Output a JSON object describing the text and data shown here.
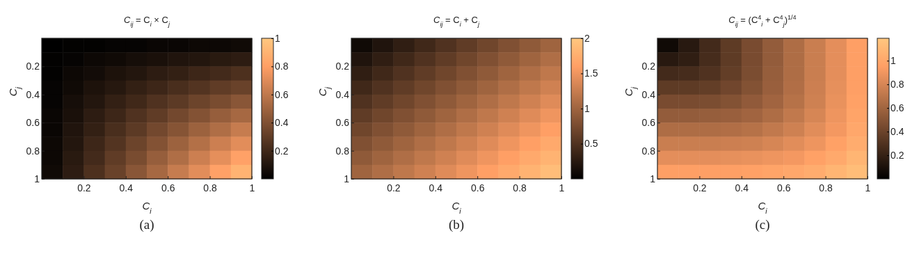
{
  "chart_data": [
    {
      "type": "heatmap",
      "title": "C$_{ij}$ = C$_{i}$ × C$_{j}$",
      "xlabel": "C$_{i}$",
      "ylabel": "C$_{j}$",
      "xlim": [
        0,
        1
      ],
      "xticks": [
        0.2,
        0.4,
        0.6,
        0.8,
        1
      ],
      "ylim": [
        1,
        0
      ],
      "yticks": [
        0.2,
        0.4,
        0.6,
        0.8,
        1
      ],
      "clim": [
        0,
        1
      ],
      "cticks": [
        0.2,
        0.4,
        0.6,
        0.8,
        1
      ],
      "cells": [
        [
          0.0,
          0.01,
          0.01,
          0.02,
          0.02,
          0.03,
          0.03,
          0.04,
          0.04,
          0.05
        ],
        [
          0.01,
          0.02,
          0.04,
          0.05,
          0.07,
          0.08,
          0.1,
          0.11,
          0.13,
          0.14
        ],
        [
          0.01,
          0.04,
          0.06,
          0.09,
          0.11,
          0.14,
          0.16,
          0.19,
          0.21,
          0.24
        ],
        [
          0.02,
          0.05,
          0.09,
          0.12,
          0.16,
          0.19,
          0.23,
          0.26,
          0.3,
          0.33
        ],
        [
          0.02,
          0.07,
          0.11,
          0.16,
          0.2,
          0.25,
          0.29,
          0.34,
          0.38,
          0.43
        ],
        [
          0.03,
          0.08,
          0.14,
          0.19,
          0.25,
          0.3,
          0.36,
          0.41,
          0.47,
          0.52
        ],
        [
          0.03,
          0.1,
          0.16,
          0.23,
          0.29,
          0.36,
          0.42,
          0.49,
          0.55,
          0.62
        ],
        [
          0.04,
          0.11,
          0.19,
          0.26,
          0.34,
          0.41,
          0.49,
          0.56,
          0.64,
          0.71
        ],
        [
          0.04,
          0.13,
          0.21,
          0.3,
          0.38,
          0.47,
          0.55,
          0.64,
          0.72,
          0.81
        ],
        [
          0.05,
          0.14,
          0.24,
          0.33,
          0.43,
          0.52,
          0.62,
          0.71,
          0.81,
          0.9
        ]
      ],
      "annotations": [
        "(a)"
      ]
    },
    {
      "type": "heatmap",
      "title": "C$_{ij}$ = C$_{i}$ + C$_{j}$",
      "xlabel": "C$_{i}$",
      "ylabel": "C$_{j}$",
      "xlim": [
        0,
        1
      ],
      "xticks": [
        0.2,
        0.4,
        0.6,
        0.8,
        1
      ],
      "ylim": [
        1,
        0
      ],
      "yticks": [
        0.2,
        0.4,
        0.6,
        0.8,
        1
      ],
      "clim": [
        0,
        2
      ],
      "cticks": [
        0.5,
        1,
        1.5,
        2
      ],
      "cells": [
        [
          0.1,
          0.2,
          0.3,
          0.4,
          0.5,
          0.6,
          0.7,
          0.8,
          0.9,
          1.0
        ],
        [
          0.2,
          0.3,
          0.4,
          0.5,
          0.6,
          0.7,
          0.8,
          0.9,
          1.0,
          1.1
        ],
        [
          0.3,
          0.4,
          0.5,
          0.6,
          0.7,
          0.8,
          0.9,
          1.0,
          1.1,
          1.2
        ],
        [
          0.4,
          0.5,
          0.6,
          0.7,
          0.8,
          0.9,
          1.0,
          1.1,
          1.2,
          1.3
        ],
        [
          0.5,
          0.6,
          0.7,
          0.8,
          0.9,
          1.0,
          1.1,
          1.2,
          1.3,
          1.4
        ],
        [
          0.6,
          0.7,
          0.8,
          0.9,
          1.0,
          1.1,
          1.2,
          1.3,
          1.4,
          1.5
        ],
        [
          0.7,
          0.8,
          0.9,
          1.0,
          1.1,
          1.2,
          1.3,
          1.4,
          1.5,
          1.6
        ],
        [
          0.8,
          0.9,
          1.0,
          1.1,
          1.2,
          1.3,
          1.4,
          1.5,
          1.6,
          1.7
        ],
        [
          0.9,
          1.0,
          1.1,
          1.2,
          1.3,
          1.4,
          1.5,
          1.6,
          1.7,
          1.8
        ],
        [
          1.0,
          1.1,
          1.2,
          1.3,
          1.4,
          1.5,
          1.6,
          1.7,
          1.8,
          1.9
        ]
      ],
      "annotations": [
        "(b)"
      ]
    },
    {
      "type": "heatmap",
      "title": "C$_{ij}$ = (C$^{4}$$_{i}$ + C$^{4}$$_{j}$)$^{1/4}$",
      "xlabel": "C$_{i}$",
      "ylabel": "C$_{j}$",
      "xlim": [
        0,
        1
      ],
      "xticks": [
        0.2,
        0.4,
        0.6,
        0.8,
        1
      ],
      "ylim": [
        1,
        0
      ],
      "yticks": [
        0.2,
        0.4,
        0.6,
        0.8,
        1
      ],
      "clim": [
        0,
        1.19
      ],
      "cticks": [
        0.2,
        0.4,
        0.6,
        0.8,
        1
      ],
      "cells": [
        [
          0.06,
          0.15,
          0.25,
          0.35,
          0.45,
          0.55,
          0.65,
          0.75,
          0.85,
          0.95
        ],
        [
          0.15,
          0.18,
          0.26,
          0.35,
          0.45,
          0.55,
          0.65,
          0.75,
          0.85,
          0.95
        ],
        [
          0.25,
          0.26,
          0.3,
          0.37,
          0.46,
          0.56,
          0.65,
          0.75,
          0.85,
          0.95
        ],
        [
          0.35,
          0.35,
          0.37,
          0.42,
          0.49,
          0.57,
          0.66,
          0.76,
          0.86,
          0.95
        ],
        [
          0.45,
          0.45,
          0.46,
          0.49,
          0.54,
          0.6,
          0.68,
          0.77,
          0.87,
          0.96
        ],
        [
          0.55,
          0.55,
          0.56,
          0.57,
          0.6,
          0.65,
          0.72,
          0.8,
          0.89,
          0.98
        ],
        [
          0.65,
          0.65,
          0.65,
          0.66,
          0.68,
          0.72,
          0.77,
          0.84,
          0.91,
          1.0
        ],
        [
          0.75,
          0.75,
          0.75,
          0.76,
          0.77,
          0.8,
          0.84,
          0.89,
          0.96,
          1.03
        ],
        [
          0.85,
          0.85,
          0.85,
          0.86,
          0.87,
          0.89,
          0.91,
          0.96,
          1.01,
          1.08
        ],
        [
          0.95,
          0.95,
          0.95,
          0.95,
          0.96,
          0.98,
          1.0,
          1.03,
          1.08,
          1.13
        ]
      ],
      "annotations": [
        "(c)"
      ]
    }
  ]
}
